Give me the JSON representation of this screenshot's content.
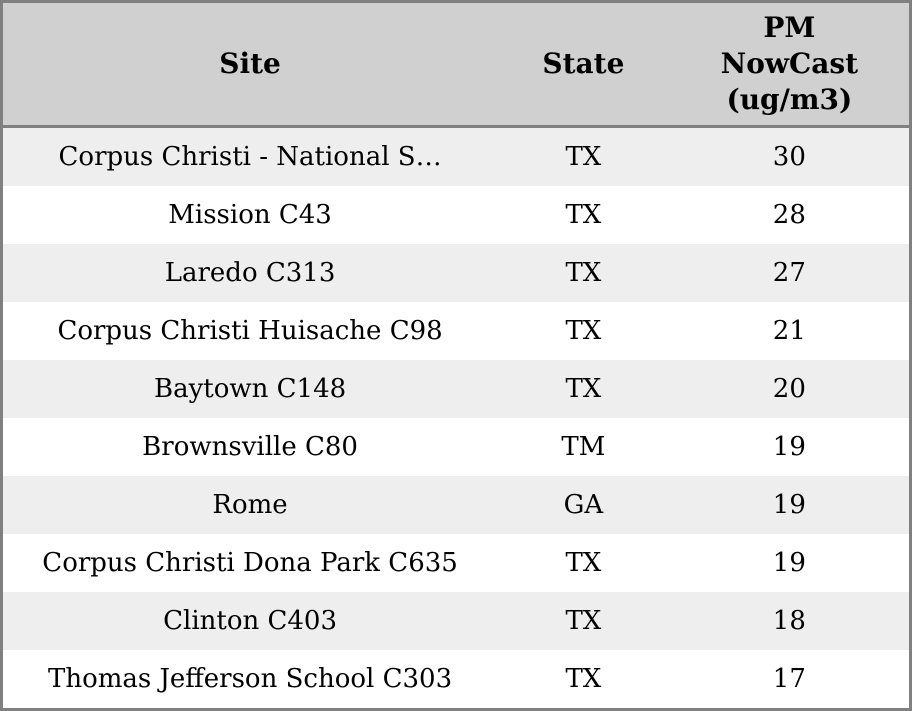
{
  "chart_data": {
    "type": "table",
    "columns": [
      {
        "key": "site",
        "label": "Site"
      },
      {
        "key": "state",
        "label": "State"
      },
      {
        "key": "pm_nowcast",
        "label": "PM NowCast (ug/m3)"
      }
    ],
    "rows": [
      {
        "site": "Corpus Christi - National S…",
        "state": "TX",
        "pm_nowcast": 30
      },
      {
        "site": "Mission C43",
        "state": "TX",
        "pm_nowcast": 28
      },
      {
        "site": "Laredo C313",
        "state": "TX",
        "pm_nowcast": 27
      },
      {
        "site": "Corpus Christi Huisache C98",
        "state": "TX",
        "pm_nowcast": 21
      },
      {
        "site": "Baytown C148",
        "state": "TX",
        "pm_nowcast": 20
      },
      {
        "site": "Brownsville C80",
        "state": "TM",
        "pm_nowcast": 19
      },
      {
        "site": "Rome",
        "state": "GA",
        "pm_nowcast": 19
      },
      {
        "site": "Corpus Christi Dona Park C635",
        "state": "TX",
        "pm_nowcast": 19
      },
      {
        "site": "Clinton C403",
        "state": "TX",
        "pm_nowcast": 18
      },
      {
        "site": "Thomas Jefferson School C303",
        "state": "TX",
        "pm_nowcast": 17
      }
    ],
    "layout": {
      "grid": "off",
      "row_striping": "alternating",
      "text_align": "center"
    }
  },
  "colors": {
    "header_bg": "#d0d0d0",
    "row_alt_bg": "#eeeeee",
    "row_bg": "#ffffff",
    "border": "#808080",
    "text": "#000000"
  }
}
